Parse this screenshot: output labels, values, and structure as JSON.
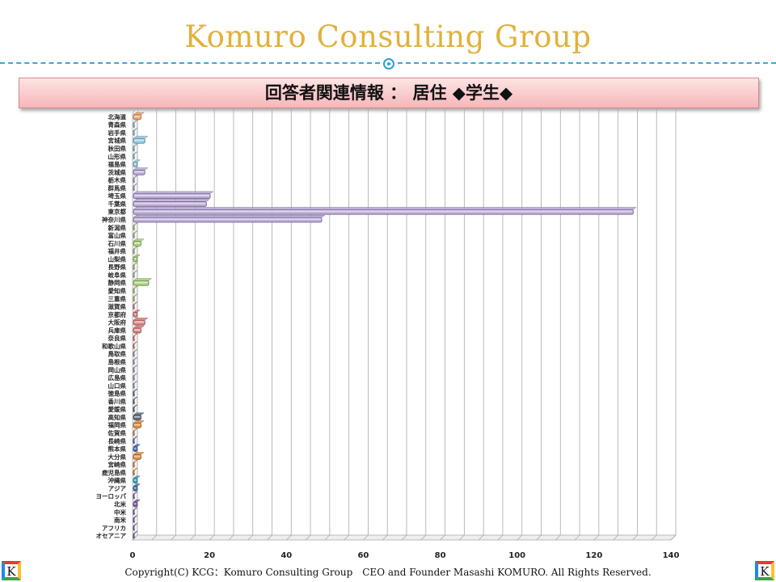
{
  "header": {
    "title": "Komuro Consulting Group"
  },
  "banner": {
    "text": "回答者関連情報 ： 居住 ◆学生◆"
  },
  "footer": {
    "copyright": "Copyright(C) KCG：Komuro Consulting Group　CEO and Founder  Masashi KOMURO. All Rights Reserved."
  },
  "logo": {
    "letter": "K",
    "colors": [
      "#e53935",
      "#fbc02d",
      "#43a047",
      "#1e88e5"
    ]
  },
  "chart_data": {
    "type": "bar",
    "orientation": "horizontal",
    "title": "",
    "xlabel": "",
    "ylabel": "",
    "xlim": [
      0,
      140
    ],
    "xticks": [
      0,
      20,
      40,
      60,
      80,
      100,
      120,
      140
    ],
    "grid": true,
    "legend": "none",
    "categories": [
      "北海道",
      "青森県",
      "岩手県",
      "宮城県",
      "秋田県",
      "山形県",
      "福島県",
      "茨城県",
      "栃木県",
      "群馬県",
      "埼玉県",
      "千葉県",
      "東京都",
      "神奈川県",
      "新潟県",
      "富山県",
      "石川県",
      "福井県",
      "山梨県",
      "長野県",
      "岐阜県",
      "静岡県",
      "愛知県",
      "三重県",
      "滋賀県",
      "京都府",
      "大阪府",
      "兵庫県",
      "奈良県",
      "和歌山県",
      "鳥取県",
      "島根県",
      "岡山県",
      "広島県",
      "山口県",
      "徳島県",
      "香川県",
      "愛媛県",
      "高知県",
      "福岡県",
      "佐賀県",
      "長崎県",
      "熊本県",
      "大分県",
      "宮崎県",
      "鹿児島県",
      "沖縄県",
      "アジア",
      "ヨーロッパ",
      "北米",
      "中米",
      "南米",
      "アフリカ",
      "オセアニア"
    ],
    "values": [
      2,
      0,
      0,
      3,
      0,
      0,
      1,
      3,
      0,
      0,
      20,
      19,
      130,
      49,
      0,
      0,
      2,
      0,
      1,
      0,
      0,
      4,
      0,
      0,
      0,
      1,
      3,
      2,
      0,
      0,
      0,
      0,
      0,
      0,
      0,
      0,
      0,
      0,
      2,
      2,
      0,
      0,
      1,
      2,
      0,
      0,
      1,
      1,
      0,
      1,
      0,
      0,
      0,
      0
    ],
    "colors": [
      "#f3a66b",
      "#8ecbe3",
      "#8ecbe3",
      "#8ecbe3",
      "#8ecbe3",
      "#8ecbe3",
      "#8ecbe3",
      "#b9a6d6",
      "#b9a6d6",
      "#b9a6d6",
      "#b9a6d6",
      "#b9a6d6",
      "#b9a6d6",
      "#b9a6d6",
      "#a8d07a",
      "#a8d07a",
      "#a8d07a",
      "#a8d07a",
      "#a8d07a",
      "#a8d07a",
      "#a8d07a",
      "#a8d07a",
      "#a8d07a",
      "#a8d07a",
      "#e07f7f",
      "#e07f7f",
      "#e07f7f",
      "#e07f7f",
      "#e07f7f",
      "#e07f7f",
      "#9aa7c7",
      "#9aa7c7",
      "#9aa7c7",
      "#9aa7c7",
      "#9aa7c7",
      "#5a6b7e",
      "#5a6b7e",
      "#5a6b7e",
      "#5a6b7e",
      "#e8893a",
      "#e8893a",
      "#3f6fb5",
      "#3f6fb5",
      "#e8893a",
      "#e8893a",
      "#e8893a",
      "#2fa6c8",
      "#3f6fb5",
      "#7e5aa6",
      "#7e5aa6",
      "#7e5aa6",
      "#7e5aa6",
      "#7e5aa6",
      "#7e5aa6"
    ]
  }
}
